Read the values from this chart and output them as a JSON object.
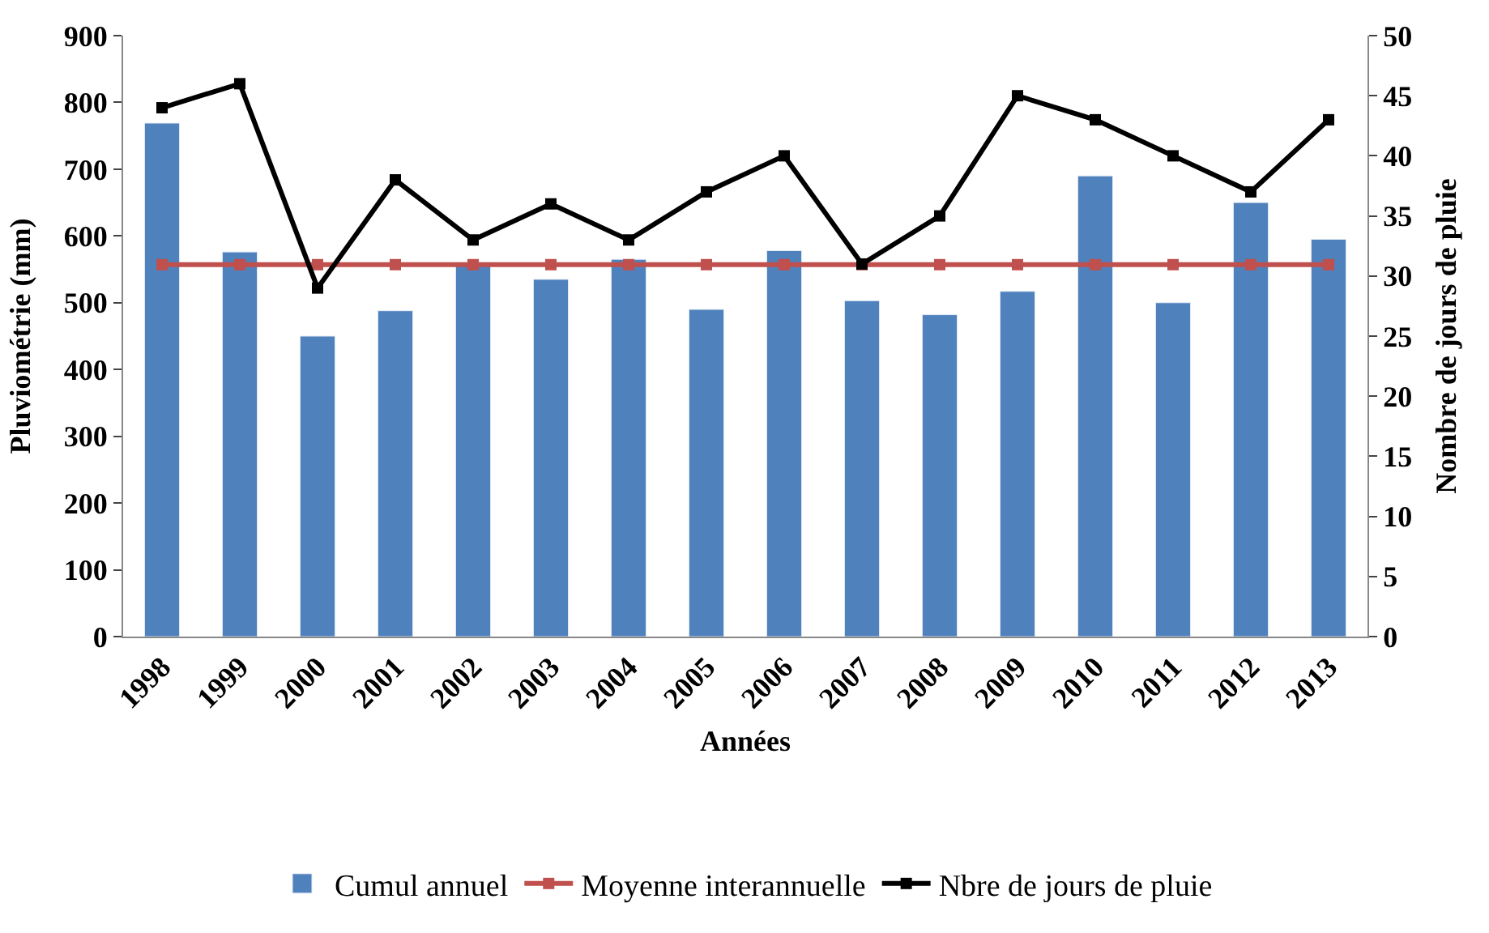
{
  "chart_data": {
    "type": "bar",
    "xlabel": "Années",
    "ylabel": "Pluviométrie (mm)",
    "y2label": "Nombre de jours de pluie",
    "categories": [
      "1998",
      "1999",
      "2000",
      "2001",
      "2002",
      "2003",
      "2004",
      "2005",
      "2006",
      "2007",
      "2008",
      "2009",
      "2010",
      "2011",
      "2012",
      "2013"
    ],
    "series": [
      {
        "name": "Cumul annuel",
        "color": "#4f81bd",
        "values": [
          769,
          576,
          450,
          488,
          560,
          535,
          565,
          490,
          578,
          503,
          482,
          517,
          690,
          500,
          650,
          595
        ]
      },
      {
        "name": "Moyenne interannuelle",
        "type": "line",
        "color": "#c0504d",
        "marker": "square",
        "values": [
          557,
          557,
          557,
          557,
          557,
          557,
          557,
          557,
          557,
          557,
          557,
          557,
          557,
          557,
          557,
          557
        ]
      },
      {
        "name": "Nbre de jours de pluie",
        "type": "line",
        "axis": "y2",
        "color": "#000000",
        "marker": "square",
        "values": [
          44,
          46,
          29,
          38,
          33,
          36,
          33,
          37,
          40,
          31,
          35,
          45,
          43,
          40,
          37,
          43
        ]
      }
    ],
    "ylim": [
      0,
      900
    ],
    "yticks": [
      0,
      100,
      200,
      300,
      400,
      500,
      600,
      700,
      800,
      900
    ],
    "y2lim": [
      0,
      50
    ],
    "y2ticks": [
      0,
      5,
      10,
      15,
      20,
      25,
      30,
      35,
      40,
      45,
      50
    ],
    "legend": "bottom"
  }
}
